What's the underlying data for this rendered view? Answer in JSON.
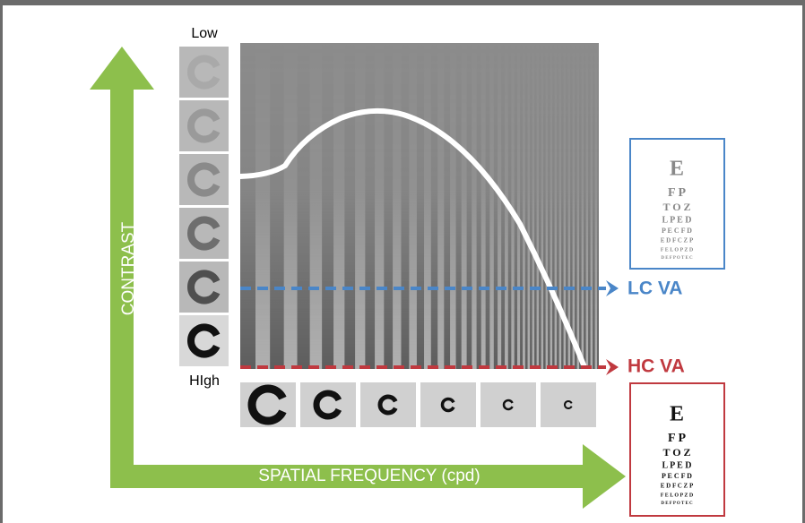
{
  "labels": {
    "low": "Low",
    "high": "HIgh",
    "y_axis": "CONTRAST",
    "x_axis": "SPATIAL FREQUENCY (cpd)",
    "lc": "LC VA",
    "hc": "HC VA"
  },
  "eye_chart_rows": [
    "E",
    "F P",
    "T O Z",
    "L P E D",
    "P E C F D",
    "E D F C Z P",
    "F E L O P Z D",
    "D E F P O T E C"
  ]
}
